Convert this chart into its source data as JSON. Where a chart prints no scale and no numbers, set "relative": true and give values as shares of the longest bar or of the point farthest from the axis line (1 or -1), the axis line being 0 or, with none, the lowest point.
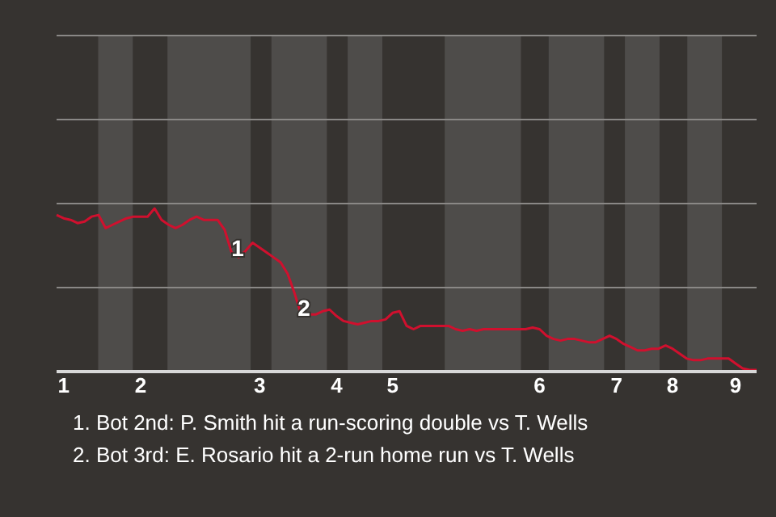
{
  "chart_data": {
    "type": "line",
    "relative": true,
    "marker": "none",
    "line_style": "solid",
    "ref_lines": [
      {
        "axis": "y",
        "value": 0.515,
        "color": "#8a8886"
      },
      {
        "axis": "y",
        "value": 1.03,
        "color": "#8a8886"
      },
      {
        "axis": "y",
        "value": 1.545,
        "color": "#8a8886"
      },
      {
        "axis": "y",
        "value": 2.06,
        "color": "#8a8886"
      }
    ],
    "categories": [
      null,
      "1",
      null,
      null,
      null,
      null,
      null,
      null,
      null,
      null,
      null,
      null,
      "2",
      null,
      null,
      null,
      null,
      null,
      null,
      null,
      null,
      null,
      null,
      null,
      null,
      null,
      null,
      null,
      null,
      "3",
      null,
      null,
      null,
      null,
      null,
      null,
      null,
      null,
      null,
      null,
      "4",
      null,
      null,
      null,
      null,
      null,
      null,
      null,
      "5",
      null,
      null,
      null,
      null,
      null,
      null,
      null,
      null,
      null,
      null,
      null,
      null,
      null,
      null,
      null,
      null,
      null,
      null,
      null,
      null,
      "6",
      null,
      null,
      null,
      null,
      null,
      null,
      null,
      null,
      null,
      null,
      "7",
      null,
      null,
      null,
      null,
      null,
      null,
      null,
      "8",
      null,
      null,
      null,
      null,
      null,
      null,
      null,
      null,
      "9",
      null,
      null,
      null
    ],
    "series": [
      {
        "color": "#d0102e",
        "values": [
          0.96,
          0.94,
          0.93,
          0.91,
          0.92,
          0.95,
          0.96,
          0.88,
          0.9,
          0.92,
          0.94,
          0.95,
          0.95,
          0.95,
          1.0,
          0.93,
          0.9,
          0.88,
          0.9,
          0.93,
          0.95,
          0.93,
          0.93,
          0.93,
          0.87,
          0.73,
          0.7,
          0.74,
          0.79,
          0.76,
          0.73,
          0.7,
          0.67,
          0.6,
          0.48,
          0.34,
          0.35,
          0.35,
          0.37,
          0.38,
          0.34,
          0.31,
          0.3,
          0.29,
          0.3,
          0.31,
          0.31,
          0.32,
          0.36,
          0.37,
          0.28,
          0.26,
          0.28,
          0.28,
          0.28,
          0.28,
          0.28,
          0.26,
          0.25,
          0.26,
          0.25,
          0.26,
          0.26,
          0.26,
          0.26,
          0.26,
          0.26,
          0.26,
          0.27,
          0.26,
          0.22,
          0.2,
          0.19,
          0.2,
          0.2,
          0.19,
          0.18,
          0.18,
          0.2,
          0.22,
          0.2,
          0.17,
          0.15,
          0.13,
          0.13,
          0.14,
          0.14,
          0.16,
          0.14,
          0.11,
          0.08,
          0.07,
          0.07,
          0.08,
          0.08,
          0.08,
          0.08,
          0.05,
          0.02,
          0.01,
          0.01
        ]
      }
    ],
    "annotations": [
      {
        "text": "1",
        "y": 0.76
      },
      {
        "text": "2",
        "y": 0.39
      },
      "1. Bot 2nd: P. Smith hit a run-scoring double vs T. Wells",
      "2. Bot 3rd: E. Rosario hit a 2-run home run vs T. Wells"
    ]
  }
}
